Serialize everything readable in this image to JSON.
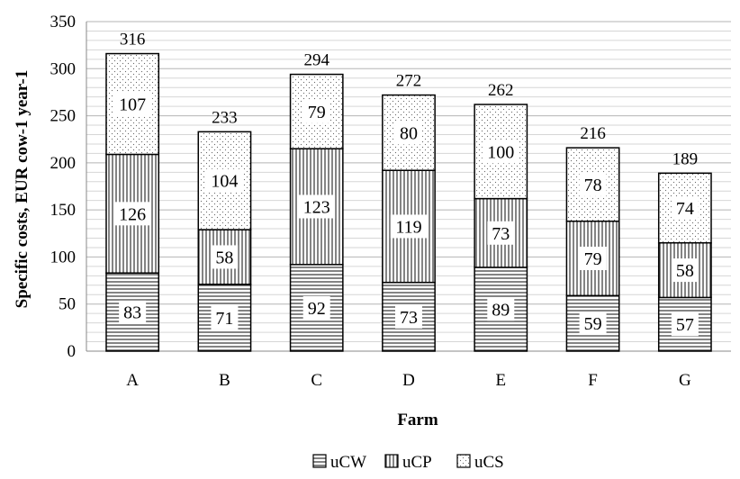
{
  "chart_data": {
    "type": "bar",
    "stacked": true,
    "categories": [
      "A",
      "B",
      "C",
      "D",
      "E",
      "F",
      "G"
    ],
    "series": [
      {
        "name": "uCW",
        "values": [
          83,
          71,
          92,
          73,
          89,
          59,
          57
        ]
      },
      {
        "name": "uCP",
        "values": [
          126,
          58,
          123,
          119,
          73,
          79,
          58
        ]
      },
      {
        "name": "uCS",
        "values": [
          107,
          104,
          79,
          80,
          100,
          78,
          74
        ]
      }
    ],
    "totals": [
      316,
      233,
      294,
      272,
      262,
      216,
      189
    ],
    "xlabel": "Farm",
    "ylabel": "Specific costs, EUR cow-1 year-1",
    "ylim": [
      0,
      350
    ],
    "yticks": [
      0,
      50,
      100,
      150,
      200,
      250,
      300,
      350
    ],
    "grid": true,
    "legend_position": "bottom",
    "series_patterns": [
      "horizontal-lines",
      "vertical-lines",
      "dots"
    ]
  }
}
